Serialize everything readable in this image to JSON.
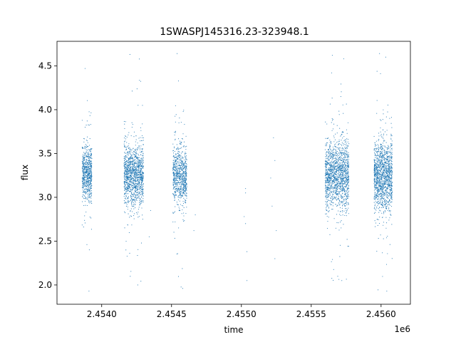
{
  "chart_data": {
    "type": "scatter",
    "title": "1SWASPJ145316.23-323948.1",
    "xlabel": "time",
    "ylabel": "flux",
    "x_offset_label": "1e6",
    "xlim": [
      2.45368,
      2.45621
    ],
    "ylim": [
      1.78,
      4.78
    ],
    "x_ticks": [
      2.454,
      2.4545,
      2.455,
      2.4555,
      2.456
    ],
    "x_tick_labels": [
      "2.4540",
      "2.4545",
      "2.4550",
      "2.4555",
      "2.4560"
    ],
    "y_ticks": [
      2.0,
      2.5,
      3.0,
      3.5,
      4.0,
      4.5
    ],
    "y_tick_labels": [
      "2.0",
      "2.5",
      "3.0",
      "3.5",
      "4.0",
      "4.5"
    ],
    "grid": false,
    "marker_color": "#1f77b4",
    "series": [
      {
        "clusters": [
          {
            "x_range": [
              2.45386,
              2.45393
            ],
            "y_center": 3.27,
            "y_spread": 0.15,
            "y_range": [
              1.93,
              4.47
            ],
            "count": 700
          },
          {
            "x_range": [
              2.45416,
              2.4543
            ],
            "y_center": 3.25,
            "y_spread": 0.18,
            "y_range": [
              2.0,
              4.63
            ],
            "count": 1300
          },
          {
            "x_range": [
              2.45451,
              2.45461
            ],
            "y_center": 3.25,
            "y_spread": 0.17,
            "y_range": [
              1.96,
              4.64
            ],
            "count": 800
          },
          {
            "x_range": [
              2.4556,
              2.45577
            ],
            "y_center": 3.25,
            "y_spread": 0.19,
            "y_range": [
              2.05,
              4.62
            ],
            "count": 1500
          },
          {
            "x_range": [
              2.45595,
              2.45608
            ],
            "y_center": 3.25,
            "y_spread": 0.2,
            "y_range": [
              1.93,
              4.64
            ],
            "count": 1400
          }
        ],
        "isolated_points": [
          {
            "x": 2.45503,
            "y": 3.1
          },
          {
            "x": 2.45503,
            "y": 3.05
          },
          {
            "x": 2.45502,
            "y": 2.78
          },
          {
            "x": 2.45503,
            "y": 2.7
          },
          {
            "x": 2.45504,
            "y": 2.38
          },
          {
            "x": 2.45504,
            "y": 2.05
          },
          {
            "x": 2.45523,
            "y": 3.68
          },
          {
            "x": 2.45524,
            "y": 3.42
          },
          {
            "x": 2.45521,
            "y": 3.22
          },
          {
            "x": 2.45522,
            "y": 2.9
          },
          {
            "x": 2.45525,
            "y": 2.62
          },
          {
            "x": 2.45524,
            "y": 2.3
          },
          {
            "x": 2.45467,
            "y": 2.8
          },
          {
            "x": 2.45466,
            "y": 2.62
          },
          {
            "x": 2.45434,
            "y": 2.55
          },
          {
            "x": 2.45435,
            "y": 2.85
          }
        ]
      }
    ]
  }
}
